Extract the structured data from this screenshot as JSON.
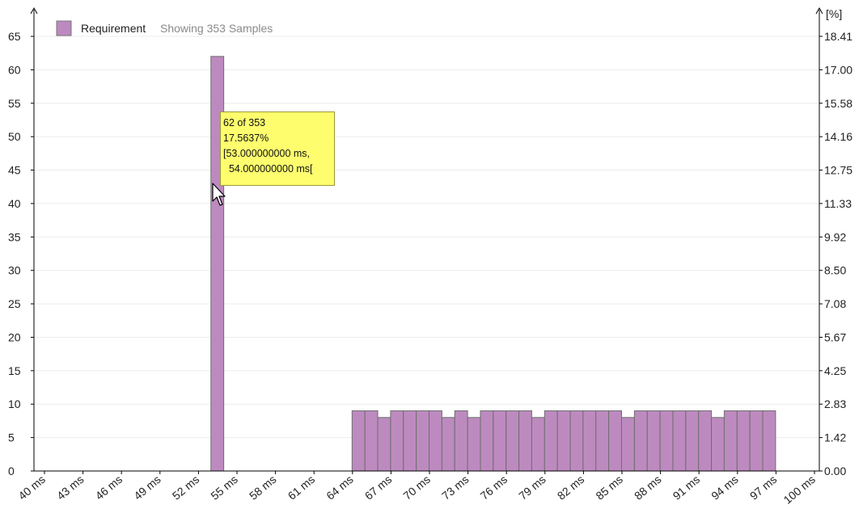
{
  "chart_data": {
    "type": "bar",
    "legend": {
      "label": "Requirement",
      "note": "Showing 353 Samples",
      "color": "#bd8abf",
      "placement": "top-left"
    },
    "left_axis": {
      "ylim": [
        0,
        65
      ],
      "ticks": [
        "0",
        "5",
        "10",
        "15",
        "20",
        "25",
        "30",
        "35",
        "40",
        "45",
        "50",
        "55",
        "60",
        "65"
      ]
    },
    "right_axis": {
      "unit_label": "[%]",
      "ticks": [
        "0.00",
        "1.42",
        "2.83",
        "4.25",
        "5.67",
        "7.08",
        "8.50",
        "9.92",
        "11.33",
        "12.75",
        "14.16",
        "15.58",
        "17.00",
        "18.41"
      ]
    },
    "x_axis": {
      "xlim": [
        40,
        100
      ],
      "tick_labels": [
        "40 ms",
        "43 ms",
        "46 ms",
        "49 ms",
        "52 ms",
        "55 ms",
        "58 ms",
        "61 ms",
        "64 ms",
        "67 ms",
        "70 ms",
        "73 ms",
        "76 ms",
        "79 ms",
        "82 ms",
        "85 ms",
        "88 ms",
        "91 ms",
        "94 ms",
        "97 ms",
        "100 ms"
      ],
      "tick_values": [
        40,
        43,
        46,
        49,
        52,
        55,
        58,
        61,
        64,
        67,
        70,
        73,
        76,
        79,
        82,
        85,
        88,
        91,
        94,
        97,
        100
      ]
    },
    "bins": [
      {
        "x": 53,
        "value": 62
      },
      {
        "x": 64,
        "value": 9
      },
      {
        "x": 65,
        "value": 9
      },
      {
        "x": 66,
        "value": 8
      },
      {
        "x": 67,
        "value": 9
      },
      {
        "x": 68,
        "value": 9
      },
      {
        "x": 69,
        "value": 9
      },
      {
        "x": 70,
        "value": 9
      },
      {
        "x": 71,
        "value": 8
      },
      {
        "x": 72,
        "value": 9
      },
      {
        "x": 73,
        "value": 8
      },
      {
        "x": 74,
        "value": 9
      },
      {
        "x": 75,
        "value": 9
      },
      {
        "x": 76,
        "value": 9
      },
      {
        "x": 77,
        "value": 9
      },
      {
        "x": 78,
        "value": 8
      },
      {
        "x": 79,
        "value": 9
      },
      {
        "x": 80,
        "value": 9
      },
      {
        "x": 81,
        "value": 9
      },
      {
        "x": 82,
        "value": 9
      },
      {
        "x": 83,
        "value": 9
      },
      {
        "x": 84,
        "value": 9
      },
      {
        "x": 85,
        "value": 8
      },
      {
        "x": 86,
        "value": 9
      },
      {
        "x": 87,
        "value": 9
      },
      {
        "x": 88,
        "value": 9
      },
      {
        "x": 89,
        "value": 9
      },
      {
        "x": 90,
        "value": 9
      },
      {
        "x": 91,
        "value": 9
      },
      {
        "x": 92,
        "value": 8
      },
      {
        "x": 93,
        "value": 9
      },
      {
        "x": 94,
        "value": 9
      },
      {
        "x": 95,
        "value": 9
      },
      {
        "x": 96,
        "value": 9
      }
    ],
    "tooltip": {
      "lines": [
        "62 of 353",
        "17.5637%",
        "[53.000000000 ms,",
        "  54.000000000 ms["
      ]
    }
  }
}
